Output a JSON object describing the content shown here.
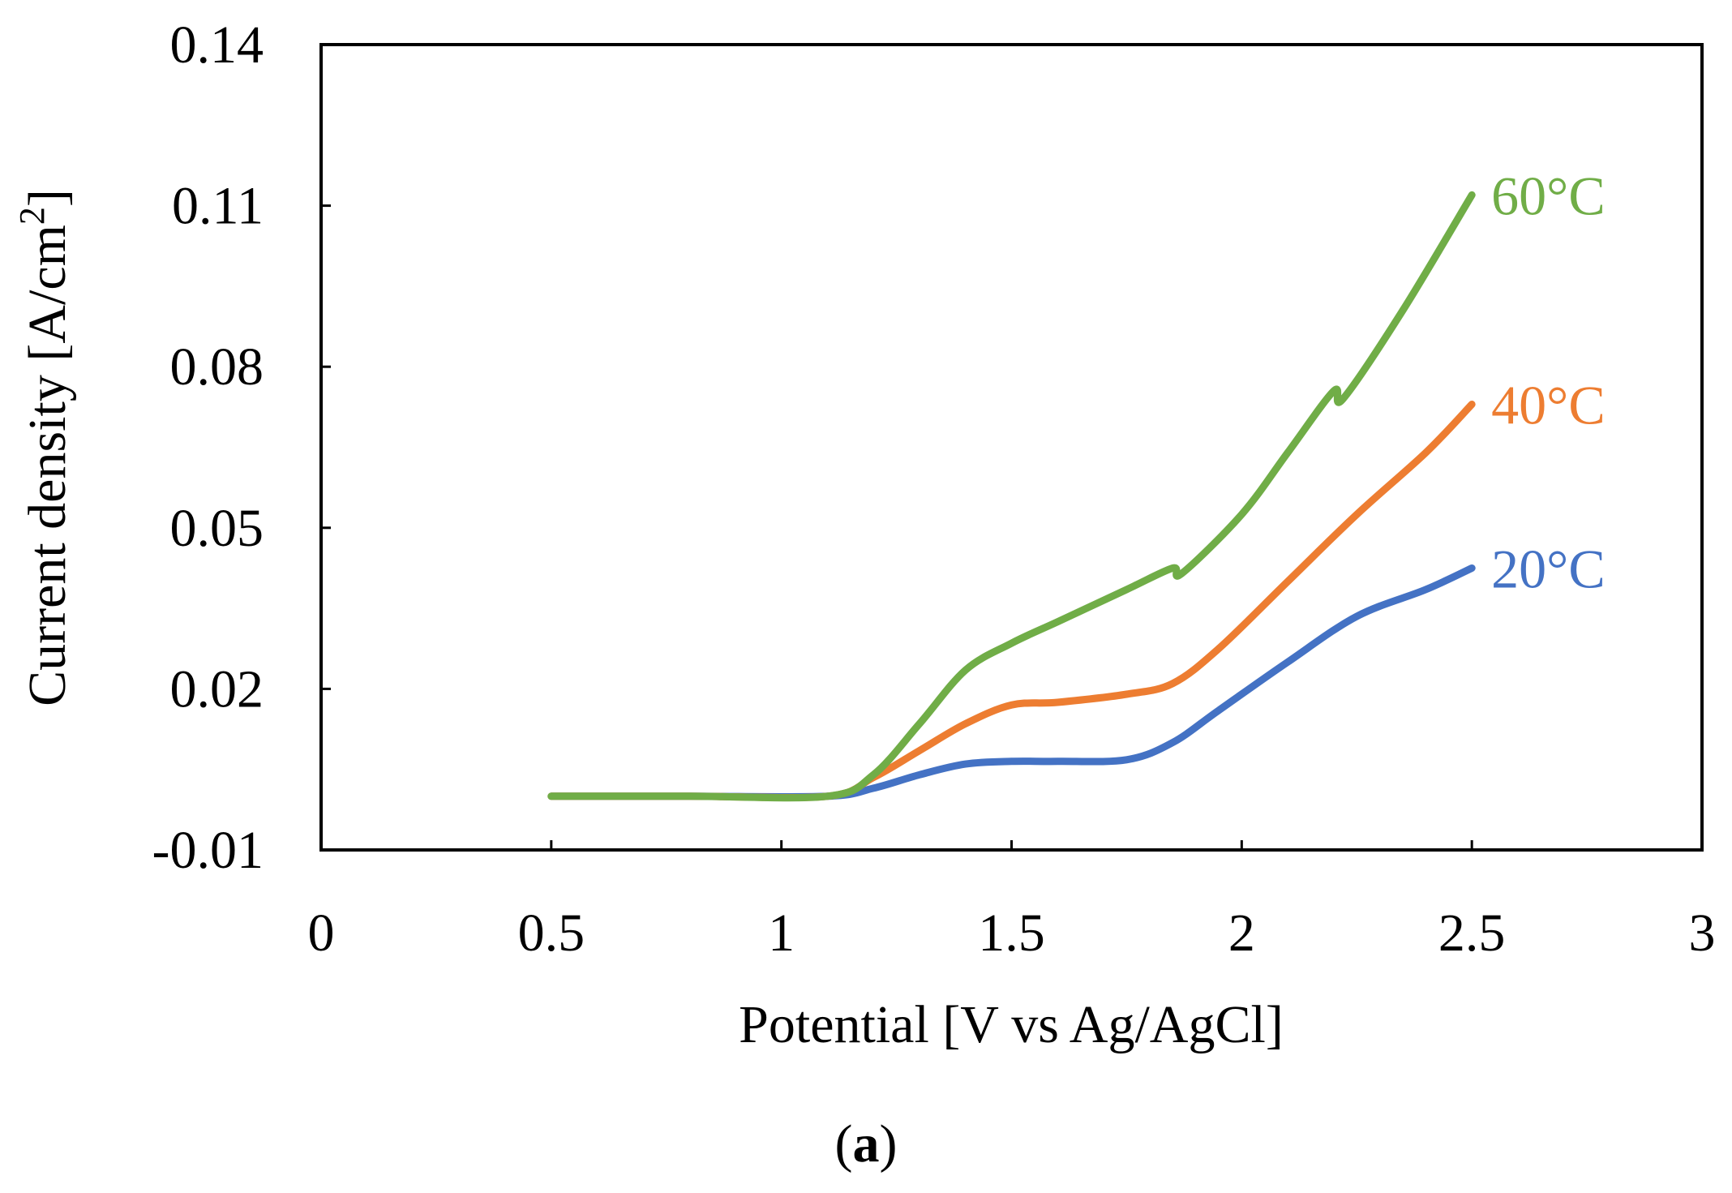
{
  "chart_data": {
    "type": "line",
    "title": "",
    "xlabel": "Potential [V vs Ag/AgCl]",
    "ylabel_main": "Current density [A/cm",
    "ylabel_sup": "2",
    "ylabel_close": "]",
    "xlim": [
      0,
      3
    ],
    "ylim": [
      -0.01,
      0.14
    ],
    "x_ticks": [
      0,
      0.5,
      1,
      1.5,
      2,
      2.5,
      3
    ],
    "x_tick_labels": [
      "0",
      "0.5",
      "1",
      "1.5",
      "2",
      "2.5",
      "3"
    ],
    "y_ticks": [
      -0.01,
      0.02,
      0.05,
      0.08,
      0.11,
      0.14
    ],
    "y_tick_labels": [
      "-0.01",
      "0.02",
      "0.05",
      "0.08",
      "0.11",
      "0.14"
    ],
    "grid": false,
    "legend": "inline labels at line ends (right)",
    "series": [
      {
        "name": "20°C",
        "color": "#4472C4",
        "x": [
          0.5,
          0.8,
          1.1,
          1.2,
          1.3,
          1.4,
          1.5,
          1.6,
          1.75,
          1.85,
          1.95,
          2.1,
          2.25,
          2.4,
          2.5
        ],
        "y": [
          0,
          0,
          0,
          0.0015,
          0.004,
          0.006,
          0.0065,
          0.0065,
          0.0068,
          0.01,
          0.016,
          0.025,
          0.0335,
          0.0385,
          0.0425
        ]
      },
      {
        "name": "40°C",
        "color": "#ED7D31",
        "x": [
          0.5,
          0.8,
          1.1,
          1.2,
          1.3,
          1.4,
          1.5,
          1.6,
          1.75,
          1.85,
          1.95,
          2.1,
          2.25,
          2.4,
          2.5
        ],
        "y": [
          0,
          0,
          0,
          0.0035,
          0.0085,
          0.0135,
          0.017,
          0.0175,
          0.019,
          0.021,
          0.0275,
          0.04,
          0.0525,
          0.064,
          0.073
        ]
      },
      {
        "name": "60°C",
        "color": "#70AD47",
        "x": [
          0.5,
          0.8,
          1.1,
          1.2,
          1.3,
          1.4,
          1.5,
          1.6,
          1.75,
          1.85,
          1.87,
          2.0,
          2.1,
          2.2,
          2.22,
          2.35,
          2.5
        ],
        "y": [
          0,
          0,
          0,
          0.004,
          0.0135,
          0.0235,
          0.0285,
          0.0325,
          0.0385,
          0.0425,
          0.0415,
          0.0525,
          0.064,
          0.0755,
          0.074,
          0.0905,
          0.112
        ]
      }
    ]
  },
  "caption": {
    "open": "(",
    "letter": "a",
    "close": ")"
  }
}
